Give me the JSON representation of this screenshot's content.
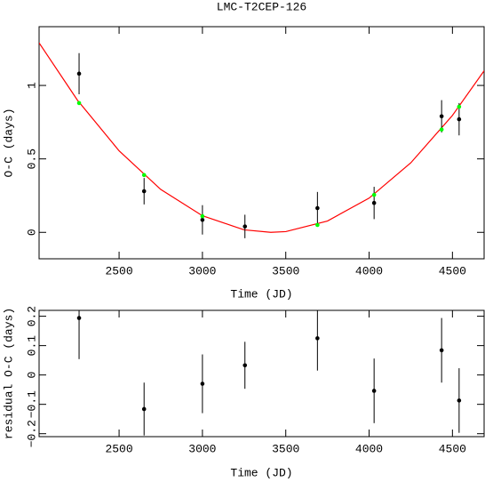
{
  "chart_data": [
    {
      "type": "scatter",
      "title": "LMC-T2CEP-126",
      "xlabel": "Time (JD)",
      "ylabel": "O-C (days)",
      "xlim": [
        2020,
        4690
      ],
      "ylim": [
        -0.18,
        1.4
      ],
      "xticks": [
        2500,
        3000,
        3500,
        4000,
        4500
      ],
      "yticks": [
        0,
        0.5,
        1
      ],
      "grid": false,
      "series": [
        {
          "type": "line",
          "color": "#ff0000",
          "x": [
            2020,
            2250,
            2500,
            2750,
            3000,
            3250,
            3410,
            3500,
            3750,
            4000,
            4250,
            4500,
            4690
          ],
          "values": [
            1.29,
            0.9,
            0.555,
            0.292,
            0.113,
            0.017,
            0,
            0.005,
            0.077,
            0.233,
            0.473,
            0.796,
            1.1
          ]
        },
        {
          "type": "scatter",
          "color": "#000000",
          "x": [
            2260,
            2650,
            3000,
            3255,
            3690,
            4030,
            4435,
            4540
          ],
          "values": [
            1.08,
            0.28,
            0.085,
            0.04,
            0.165,
            0.2,
            0.79,
            0.77
          ],
          "errors": [
            0.14,
            0.09,
            0.1,
            0.08,
            0.11,
            0.11,
            0.11,
            0.11
          ]
        },
        {
          "type": "scatter",
          "color": "#00ff00",
          "x": [
            2260,
            2650,
            3000,
            3690,
            4030,
            4435,
            4540
          ],
          "values": [
            0.88,
            0.39,
            0.11,
            0.05,
            0.255,
            0.7,
            0.855
          ]
        }
      ]
    },
    {
      "type": "scatter",
      "xlabel": "Time (JD)",
      "ylabel": "residual O-C (days)",
      "xlim": [
        2020,
        4690
      ],
      "ylim": [
        -0.21,
        0.22
      ],
      "xticks": [
        2500,
        3000,
        3500,
        4000,
        4500
      ],
      "yticks": [
        {
          "value": -0.2,
          "label": "−0.2"
        },
        {
          "value": -0.1,
          "label": "−0.1"
        },
        0,
        0.1,
        0.2
      ],
      "grid": false,
      "series": [
        {
          "type": "scatter",
          "color": "#000000",
          "x": [
            2260,
            2650,
            3000,
            3255,
            3690,
            4030,
            4435,
            4540
          ],
          "values": [
            0.194,
            -0.116,
            -0.03,
            0.033,
            0.125,
            -0.054,
            0.084,
            -0.087
          ],
          "errors": [
            0.14,
            0.09,
            0.1,
            0.08,
            0.11,
            0.11,
            0.11,
            0.11
          ]
        }
      ]
    }
  ]
}
